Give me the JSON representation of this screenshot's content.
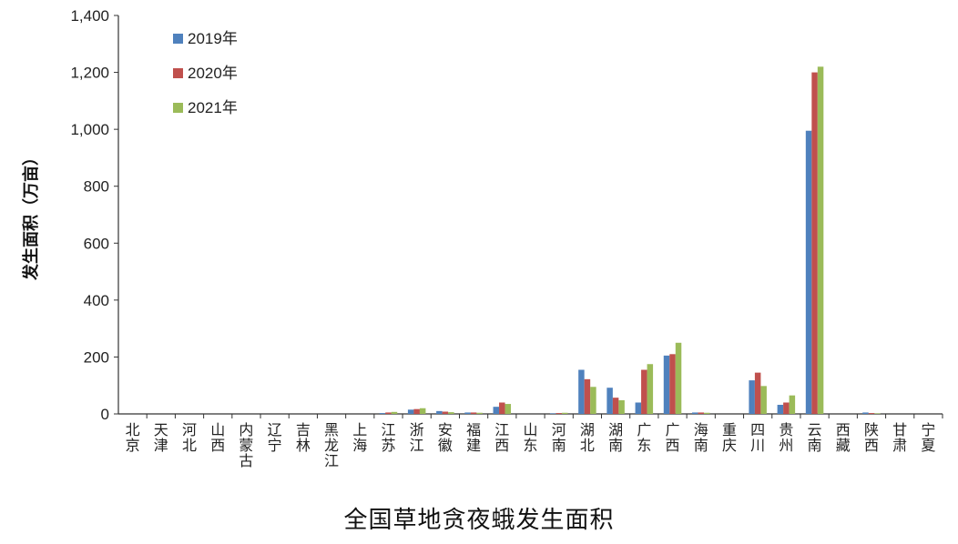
{
  "chart_data": {
    "type": "bar",
    "title": "全国草地贪夜蛾发生面积",
    "xlabel": "",
    "ylabel": "发生面积（万亩）",
    "ylim": [
      0,
      1400
    ],
    "yticks": [
      0,
      200,
      400,
      600,
      800,
      1000,
      1200,
      1400
    ],
    "ytick_labels": [
      "0",
      "200",
      "400",
      "600",
      "800",
      "1,000",
      "1,200",
      "1,400"
    ],
    "grid": false,
    "legend_position": "top-left",
    "categories": [
      "北京",
      "天津",
      "河北",
      "山西",
      "内蒙古",
      "辽宁",
      "吉林",
      "黑龙江",
      "上海",
      "江苏",
      "浙江",
      "安徽",
      "福建",
      "江西",
      "山东",
      "河南",
      "湖北",
      "湖南",
      "广东",
      "广西",
      "海南",
      "重庆",
      "四川",
      "贵州",
      "云南",
      "西藏",
      "陕西",
      "甘肃",
      "宁夏"
    ],
    "series": [
      {
        "name": "2019年",
        "color": "#4F81BD",
        "values": [
          0,
          0,
          0,
          0,
          0,
          0,
          0,
          0,
          0,
          3,
          15,
          10,
          5,
          25,
          0,
          2,
          155,
          92,
          40,
          205,
          5,
          0,
          118,
          32,
          995,
          0,
          5,
          0,
          0
        ]
      },
      {
        "name": "2020年",
        "color": "#C0504D",
        "values": [
          0,
          0,
          0,
          0,
          0,
          0,
          0,
          0,
          0,
          5,
          17,
          8,
          5,
          40,
          0,
          3,
          122,
          57,
          155,
          210,
          5,
          0,
          145,
          40,
          1200,
          0,
          3,
          0,
          0
        ]
      },
      {
        "name": "2021年",
        "color": "#9BBB59",
        "values": [
          0,
          0,
          0,
          0,
          0,
          0,
          0,
          0,
          0,
          7,
          20,
          6,
          4,
          35,
          0,
          4,
          95,
          48,
          175,
          250,
          4,
          0,
          98,
          65,
          1220,
          0,
          2,
          0,
          0
        ]
      }
    ]
  }
}
